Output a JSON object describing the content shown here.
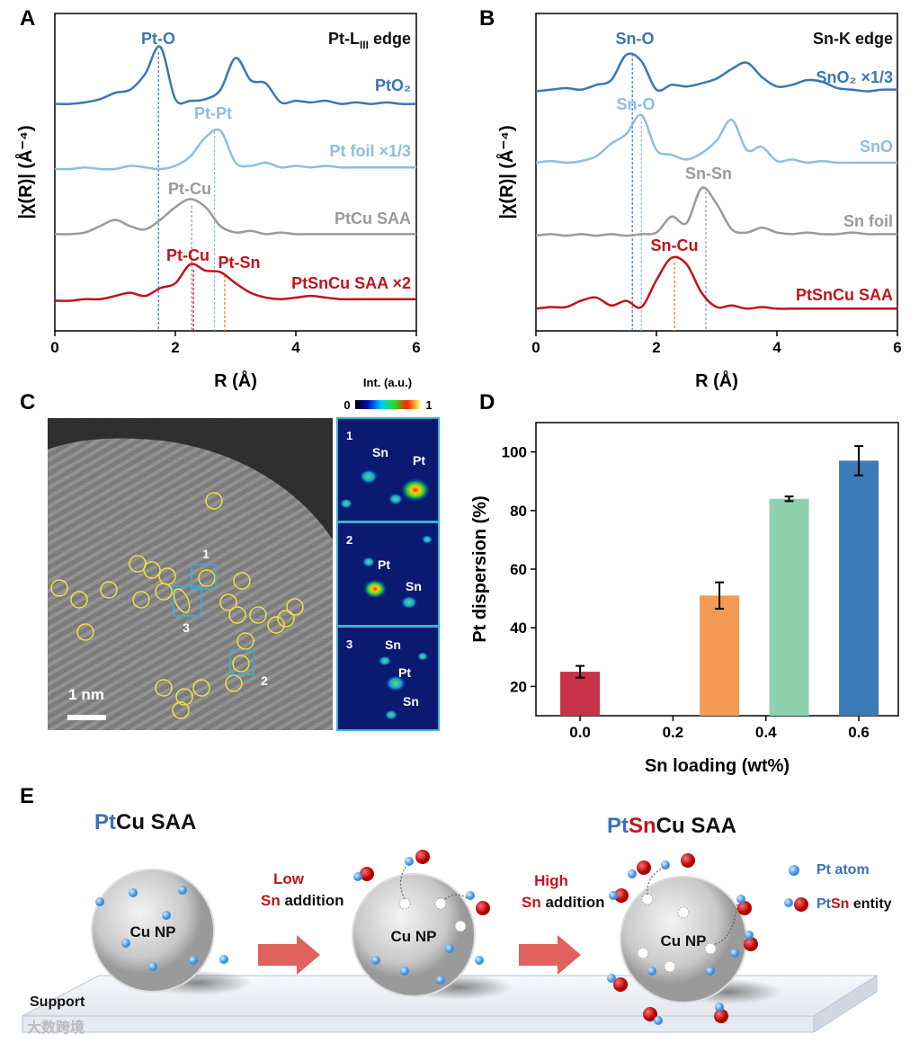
{
  "panel_labels": [
    "A",
    "B",
    "C",
    "D",
    "E"
  ],
  "chart_data": [
    {
      "type": "line",
      "panel": "A",
      "title_parts": [
        "Pt-L",
        "III",
        " edge"
      ],
      "xlabel": "R (Å)",
      "ylabel": "|χ(R)| (Å⁻⁴)",
      "xlim": [
        0,
        6
      ],
      "xticks": [
        0,
        2,
        4,
        6
      ],
      "ylim": [
        0,
        10
      ],
      "x": [
        0,
        0.25,
        0.5,
        0.75,
        1,
        1.25,
        1.5,
        1.75,
        2,
        2.25,
        2.5,
        2.75,
        3,
        3.25,
        3.5,
        3.75,
        4,
        4.25,
        4.5,
        4.75,
        5,
        5.25,
        5.5,
        5.75,
        6
      ],
      "series": [
        {
          "name": "PtO₂",
          "color": "#3a78b2",
          "values": [
            7.15,
            7.15,
            7.2,
            7.3,
            7.5,
            7.6,
            8.1,
            8.95,
            7.3,
            7.25,
            7.3,
            7.6,
            8.6,
            7.9,
            7.8,
            7.2,
            7.25,
            7.2,
            7.25,
            7.15,
            7.2,
            7.15,
            7.2,
            7.15,
            7.15
          ]
        },
        {
          "name": "Pt foil ×1/3",
          "color": "#8dbedf",
          "values": [
            5.1,
            5.1,
            5.15,
            5.1,
            5.1,
            5.2,
            5.15,
            5.1,
            5.2,
            5.5,
            6.1,
            6.3,
            5.3,
            5.2,
            5.3,
            5.15,
            5.2,
            5.15,
            5.2,
            5.15,
            5.15,
            5.15,
            5.15,
            5.15,
            5.15
          ]
        },
        {
          "name": "PtCu SAA",
          "color": "#9a9a9a",
          "values": [
            3.05,
            3.05,
            3.1,
            3.3,
            3.5,
            3.3,
            3.2,
            3.5,
            3.9,
            4.15,
            3.9,
            3.3,
            3.1,
            3.15,
            3.05,
            3.1,
            3.05,
            3.05,
            3.05,
            3.05,
            3.05,
            3.05,
            3.05,
            3.05,
            3.05
          ]
        },
        {
          "name": "PtSnCu SAA ×2",
          "color": "#c0141c",
          "values": [
            0.95,
            0.95,
            1,
            1,
            1.1,
            1.2,
            1.1,
            1.35,
            1.5,
            2.1,
            1.9,
            1.85,
            1.5,
            1.2,
            1.05,
            1,
            1.05,
            1.1,
            1.05,
            1,
            1,
            1,
            1,
            1,
            1
          ]
        }
      ],
      "annotations": [
        {
          "text": "Pt-O",
          "color": "#3a78b2"
        },
        {
          "text": "Pt-Pt",
          "color": "#8dbedf"
        },
        {
          "text": "Pt-Cu",
          "color": "#9a9a9a"
        },
        {
          "text": "Pt-Cu",
          "color": "#c0141c"
        },
        {
          "text": "Pt-Sn",
          "color": "#c0141c"
        }
      ],
      "reference_lines": [
        {
          "x": 1.72,
          "color": "#3a78b2"
        },
        {
          "x": 2.65,
          "color": "#8dbedf"
        },
        {
          "x": 2.27,
          "color": "#9a9a9a"
        },
        {
          "x": 2.3,
          "color": "#c0141c"
        },
        {
          "x": 2.82,
          "color": "#e07a3a"
        }
      ]
    },
    {
      "type": "line",
      "panel": "B",
      "title_parts": [
        "Sn-K edge"
      ],
      "xlabel": "R (Å)",
      "ylabel": "|χ(R)| (Å⁻⁴)",
      "xlim": [
        0,
        6
      ],
      "xticks": [
        0,
        2,
        4,
        6
      ],
      "ylim": [
        0,
        10
      ],
      "x": [
        0,
        0.25,
        0.5,
        0.75,
        1,
        1.25,
        1.5,
        1.75,
        2,
        2.25,
        2.5,
        2.75,
        3,
        3.25,
        3.5,
        3.75,
        4,
        4.25,
        4.5,
        4.75,
        5,
        5.25,
        5.5,
        5.75,
        6
      ],
      "series": [
        {
          "name": "SnO₂ ×1/3",
          "color": "#3a78b2",
          "values": [
            7.55,
            7.6,
            7.65,
            7.6,
            7.75,
            7.9,
            8.7,
            8.5,
            7.6,
            7.75,
            7.7,
            7.8,
            7.95,
            8.25,
            8.45,
            8,
            7.7,
            7.75,
            7.9,
            7.85,
            7.65,
            7.6,
            7.55,
            7.6,
            7.6
          ]
        },
        {
          "name": "SnO",
          "color": "#8dbedf",
          "values": [
            5.3,
            5.35,
            5.3,
            5.35,
            5.5,
            5.9,
            6.2,
            6.8,
            5.7,
            5.55,
            5.4,
            5.6,
            6,
            6.65,
            5.7,
            5.8,
            5.35,
            5.4,
            5.3,
            5.35,
            5.3,
            5.3,
            5.3,
            5.3,
            5.3
          ]
        },
        {
          "name": "Sn foil",
          "color": "#9a9a9a",
          "values": [
            3,
            3.05,
            3,
            3.05,
            3,
            3.05,
            3,
            3.05,
            3.1,
            3.6,
            3.4,
            4.5,
            4,
            3.2,
            3.1,
            3.25,
            3.1,
            3.05,
            3.1,
            3.05,
            3.05,
            3.1,
            3.05,
            3.05,
            3.05
          ]
        },
        {
          "name": "PtSnCu SAA",
          "color": "#c0141c",
          "values": [
            0.7,
            0.75,
            0.75,
            0.95,
            1.05,
            0.8,
            0.95,
            0.75,
            1.6,
            2.3,
            2.1,
            1.2,
            0.75,
            0.8,
            0.7,
            0.75,
            0.7,
            0.7,
            0.7,
            0.7,
            0.7,
            0.7,
            0.7,
            0.7,
            0.7
          ]
        }
      ],
      "annotations": [
        {
          "text": "Sn-O",
          "color": "#3a78b2"
        },
        {
          "text": "Sn-O",
          "color": "#8dbedf"
        },
        {
          "text": "Sn-Sn",
          "color": "#9a9a9a"
        },
        {
          "text": "Sn-Cu",
          "color": "#c0141c"
        }
      ],
      "reference_lines": [
        {
          "x": 1.6,
          "color": "#3a78b2"
        },
        {
          "x": 1.75,
          "color": "#8dbedf"
        },
        {
          "x": 2.82,
          "color": "#9a9a9a"
        },
        {
          "x": 2.3,
          "color": "#e07a3a"
        }
      ]
    },
    {
      "type": "bar",
      "panel": "D",
      "xlabel": "Sn loading (wt%)",
      "ylabel": "Pt dispersion (%)",
      "xlim": [
        -0.095,
        0.685
      ],
      "xticks": [
        {
          "value": 0,
          "label": "0.0"
        },
        0.2,
        0.4,
        0.6
      ],
      "ylim": [
        10,
        110
      ],
      "yticks": [
        20,
        40,
        60,
        80,
        100
      ],
      "x": [
        0,
        0.3,
        0.45,
        0.6
      ],
      "values": [
        25,
        51,
        84,
        97
      ],
      "errors": [
        2,
        4.5,
        0.8,
        5
      ],
      "colors": [
        "#c8334a",
        "#f59a55",
        "#8fd1ac",
        "#3b7bb8"
      ]
    }
  ],
  "panel_c": {
    "scale_bar": "1 nm",
    "region_labels": [
      "1",
      "2",
      "3"
    ],
    "colorbar_title": "Int. (a.u.)",
    "colorbar_min": "0",
    "colorbar_max": "1",
    "insets": [
      {
        "label": "1",
        "atoms": [
          "Sn",
          "Pt"
        ]
      },
      {
        "label": "2",
        "atoms": [
          "Pt",
          "Sn"
        ]
      },
      {
        "label": "3",
        "atoms": [
          "Sn",
          "Pt",
          "Sn"
        ]
      }
    ]
  },
  "panel_e": {
    "left_title": [
      "Pt",
      "Cu SAA"
    ],
    "right_title": [
      "Pt",
      "Sn",
      "Cu SAA"
    ],
    "arrow_1": [
      "Low",
      "Sn",
      " addition"
    ],
    "arrow_2": [
      "High",
      "Sn",
      " addition"
    ],
    "particle": "Cu NP",
    "legend_atom": "Pt atom",
    "legend_entity": [
      "Pt",
      "Sn",
      " entity"
    ],
    "support": "Support"
  },
  "watermark": "大数跨境"
}
